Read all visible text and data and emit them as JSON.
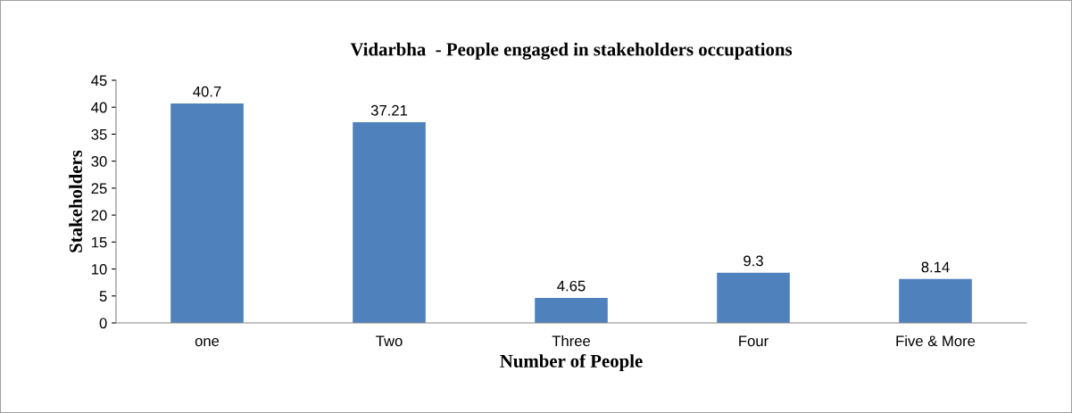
{
  "chart_data": {
    "type": "bar",
    "title": "Vidarbha  - People engaged in stakeholders occupations",
    "xlabel": "Number of People",
    "ylabel": "Stakeholders",
    "categories": [
      "one",
      "Two",
      "Three",
      "Four",
      "Five & More"
    ],
    "values": [
      40.7,
      37.21,
      4.65,
      9.3,
      8.14
    ],
    "color": "#4f81bd",
    "ylim": [
      0,
      45
    ],
    "yticks": [
      0,
      5,
      10,
      15,
      20,
      25,
      30,
      35,
      40,
      45
    ],
    "grid": false,
    "data_labels": true
  }
}
